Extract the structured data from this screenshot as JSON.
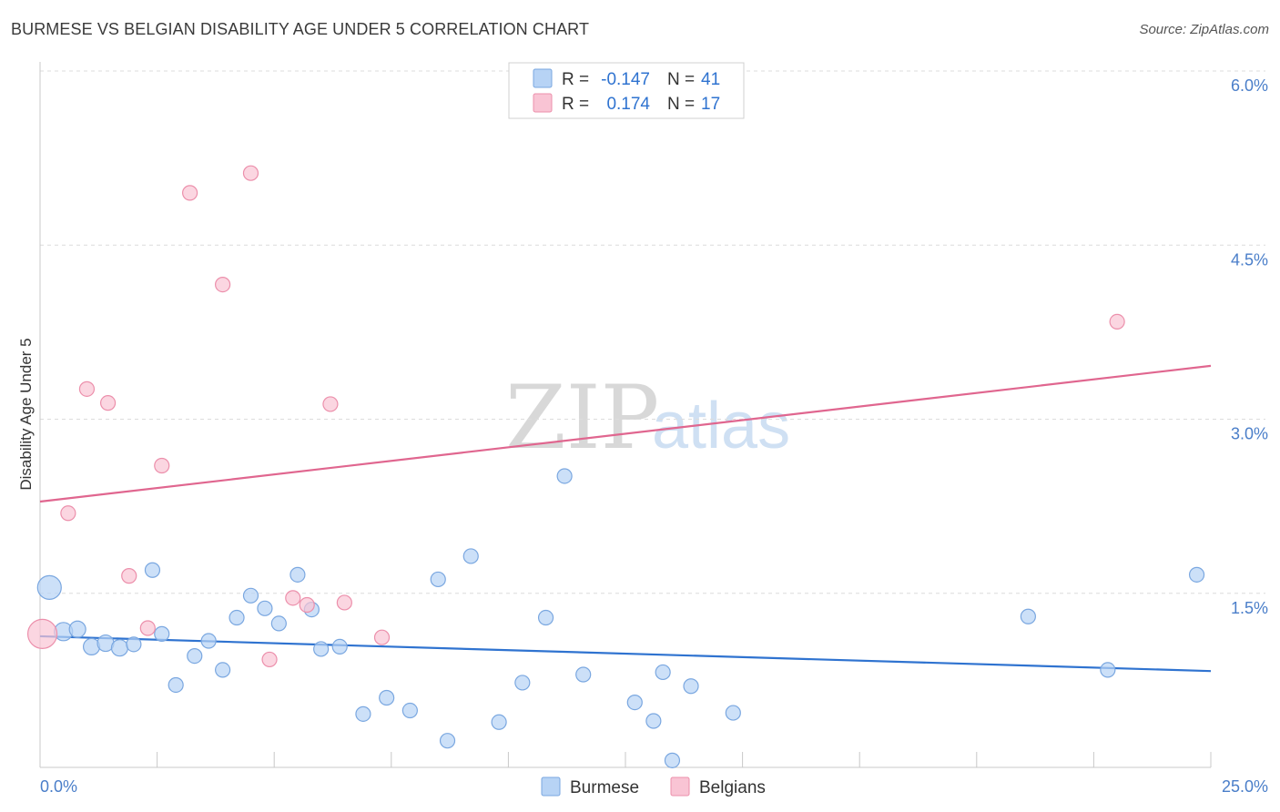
{
  "header": {
    "title": "BURMESE VS BELGIAN DISABILITY AGE UNDER 5 CORRELATION CHART",
    "source": "Source: ZipAtlas.com"
  },
  "watermark": {
    "zip": "ZIP",
    "atlas": "atlas"
  },
  "legend_box": {
    "rows": [
      {
        "r_label": "R =",
        "r_value": "-0.147",
        "n_label": "N =",
        "n_value": "41",
        "color": "#b7d3f5",
        "edge": "#7aa7e0"
      },
      {
        "r_label": "R =",
        "r_value": "0.174",
        "n_label": "N =",
        "n_value": "17",
        "color": "#f9c4d4",
        "edge": "#ec8fab"
      }
    ]
  },
  "bottom_legend": [
    {
      "label": "Burmese",
      "color": "#b7d3f5",
      "edge": "#7aa7e0"
    },
    {
      "label": "Belgians",
      "color": "#f9c4d4",
      "edge": "#ec8fab"
    }
  ],
  "chart_data": {
    "type": "scatter",
    "title": "BURMESE VS BELGIAN DISABILITY AGE UNDER 5 CORRELATION CHART",
    "xlabel": "",
    "ylabel": "Disability Age Under 5",
    "xlim": [
      0,
      25
    ],
    "ylim": [
      0,
      6.0
    ],
    "x_tick_labels": [
      "0.0%",
      "25.0%"
    ],
    "y_ticks": [
      1.5,
      3.0,
      4.5,
      6.0
    ],
    "y_tick_labels": [
      "1.5%",
      "3.0%",
      "4.5%",
      "6.0%"
    ],
    "grid": "horizontal dashed",
    "legend": "top-center",
    "series": [
      {
        "name": "Burmese",
        "color": "#b7d3f5",
        "edge": "#7aa7e0",
        "line_color": "#2f73d0",
        "trend": [
          [
            0,
            1.13
          ],
          [
            25,
            0.83
          ]
        ],
        "points": [
          [
            0.2,
            1.55,
            13
          ],
          [
            0.5,
            1.17,
            10
          ],
          [
            0.8,
            1.19,
            9
          ],
          [
            1.1,
            1.04,
            9
          ],
          [
            1.4,
            1.07,
            9
          ],
          [
            1.7,
            1.03,
            9
          ],
          [
            2.0,
            1.06,
            8
          ],
          [
            2.4,
            1.7,
            8
          ],
          [
            2.6,
            1.15,
            8
          ],
          [
            2.9,
            0.71,
            8
          ],
          [
            3.3,
            0.96,
            8
          ],
          [
            3.6,
            1.09,
            8
          ],
          [
            3.9,
            0.84,
            8
          ],
          [
            4.2,
            1.29,
            8
          ],
          [
            4.5,
            1.48,
            8
          ],
          [
            4.8,
            1.37,
            8
          ],
          [
            5.1,
            1.24,
            8
          ],
          [
            5.5,
            1.66,
            8
          ],
          [
            5.8,
            1.36,
            8
          ],
          [
            6.0,
            1.02,
            8
          ],
          [
            6.4,
            1.04,
            8
          ],
          [
            6.9,
            0.46,
            8
          ],
          [
            7.4,
            0.6,
            8
          ],
          [
            7.9,
            0.49,
            8
          ],
          [
            8.5,
            1.62,
            8
          ],
          [
            8.7,
            0.23,
            8
          ],
          [
            9.2,
            1.82,
            8
          ],
          [
            9.8,
            0.39,
            8
          ],
          [
            10.3,
            0.73,
            8
          ],
          [
            10.8,
            1.29,
            8
          ],
          [
            11.2,
            2.51,
            8
          ],
          [
            11.6,
            0.8,
            8
          ],
          [
            12.7,
            0.56,
            8
          ],
          [
            13.1,
            0.4,
            8
          ],
          [
            13.3,
            0.82,
            8
          ],
          [
            13.5,
            0.06,
            8
          ],
          [
            13.9,
            0.7,
            8
          ],
          [
            14.8,
            0.47,
            8
          ],
          [
            21.1,
            1.3,
            8
          ],
          [
            22.8,
            0.84,
            8
          ],
          [
            24.7,
            1.66,
            8
          ]
        ]
      },
      {
        "name": "Belgians",
        "color": "#f9c4d4",
        "edge": "#ec8fab",
        "line_color": "#e0668f",
        "trend": [
          [
            0,
            2.29
          ],
          [
            25,
            3.46
          ]
        ],
        "points": [
          [
            0.05,
            1.15,
            16
          ],
          [
            0.6,
            2.19,
            8
          ],
          [
            1.0,
            3.26,
            8
          ],
          [
            1.45,
            3.14,
            8
          ],
          [
            1.9,
            1.65,
            8
          ],
          [
            2.3,
            1.2,
            8
          ],
          [
            2.6,
            2.6,
            8
          ],
          [
            3.2,
            4.95,
            8
          ],
          [
            3.9,
            4.16,
            8
          ],
          [
            4.5,
            5.12,
            8
          ],
          [
            4.9,
            0.93,
            8
          ],
          [
            5.4,
            1.46,
            8
          ],
          [
            5.7,
            1.4,
            8
          ],
          [
            6.2,
            3.13,
            8
          ],
          [
            6.5,
            1.42,
            8
          ],
          [
            7.3,
            1.12,
            8
          ],
          [
            23.0,
            3.84,
            8
          ]
        ]
      }
    ]
  }
}
